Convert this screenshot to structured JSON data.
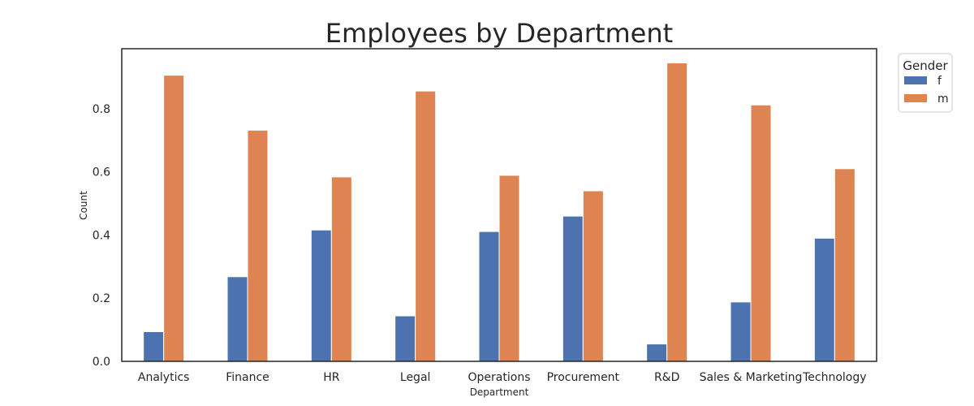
{
  "chart_data": {
    "type": "bar",
    "title": "Employees by Department",
    "xlabel": "Department",
    "ylabel": "Count",
    "categories": [
      "Analytics",
      "Finance",
      "HR",
      "Legal",
      "Operations",
      "Procurement",
      "R&D",
      "Sales & Marketing",
      "Technology"
    ],
    "series": [
      {
        "name": "f",
        "color": "#4c72b0",
        "values": [
          0.094,
          0.268,
          0.416,
          0.144,
          0.411,
          0.46,
          0.055,
          0.188,
          0.39
        ]
      },
      {
        "name": "m",
        "color": "#dd8452",
        "values": [
          0.906,
          0.732,
          0.584,
          0.856,
          0.589,
          0.54,
          0.945,
          0.812,
          0.61
        ]
      }
    ],
    "ylim": [
      0,
      0.99
    ],
    "yticks": [
      0.0,
      0.2,
      0.4,
      0.6,
      0.8
    ],
    "ytick_labels": [
      "0.0",
      "0.2",
      "0.4",
      "0.6",
      "0.8"
    ],
    "grid": false,
    "legend": {
      "title": "Gender",
      "placement": "outside-top-right"
    }
  }
}
